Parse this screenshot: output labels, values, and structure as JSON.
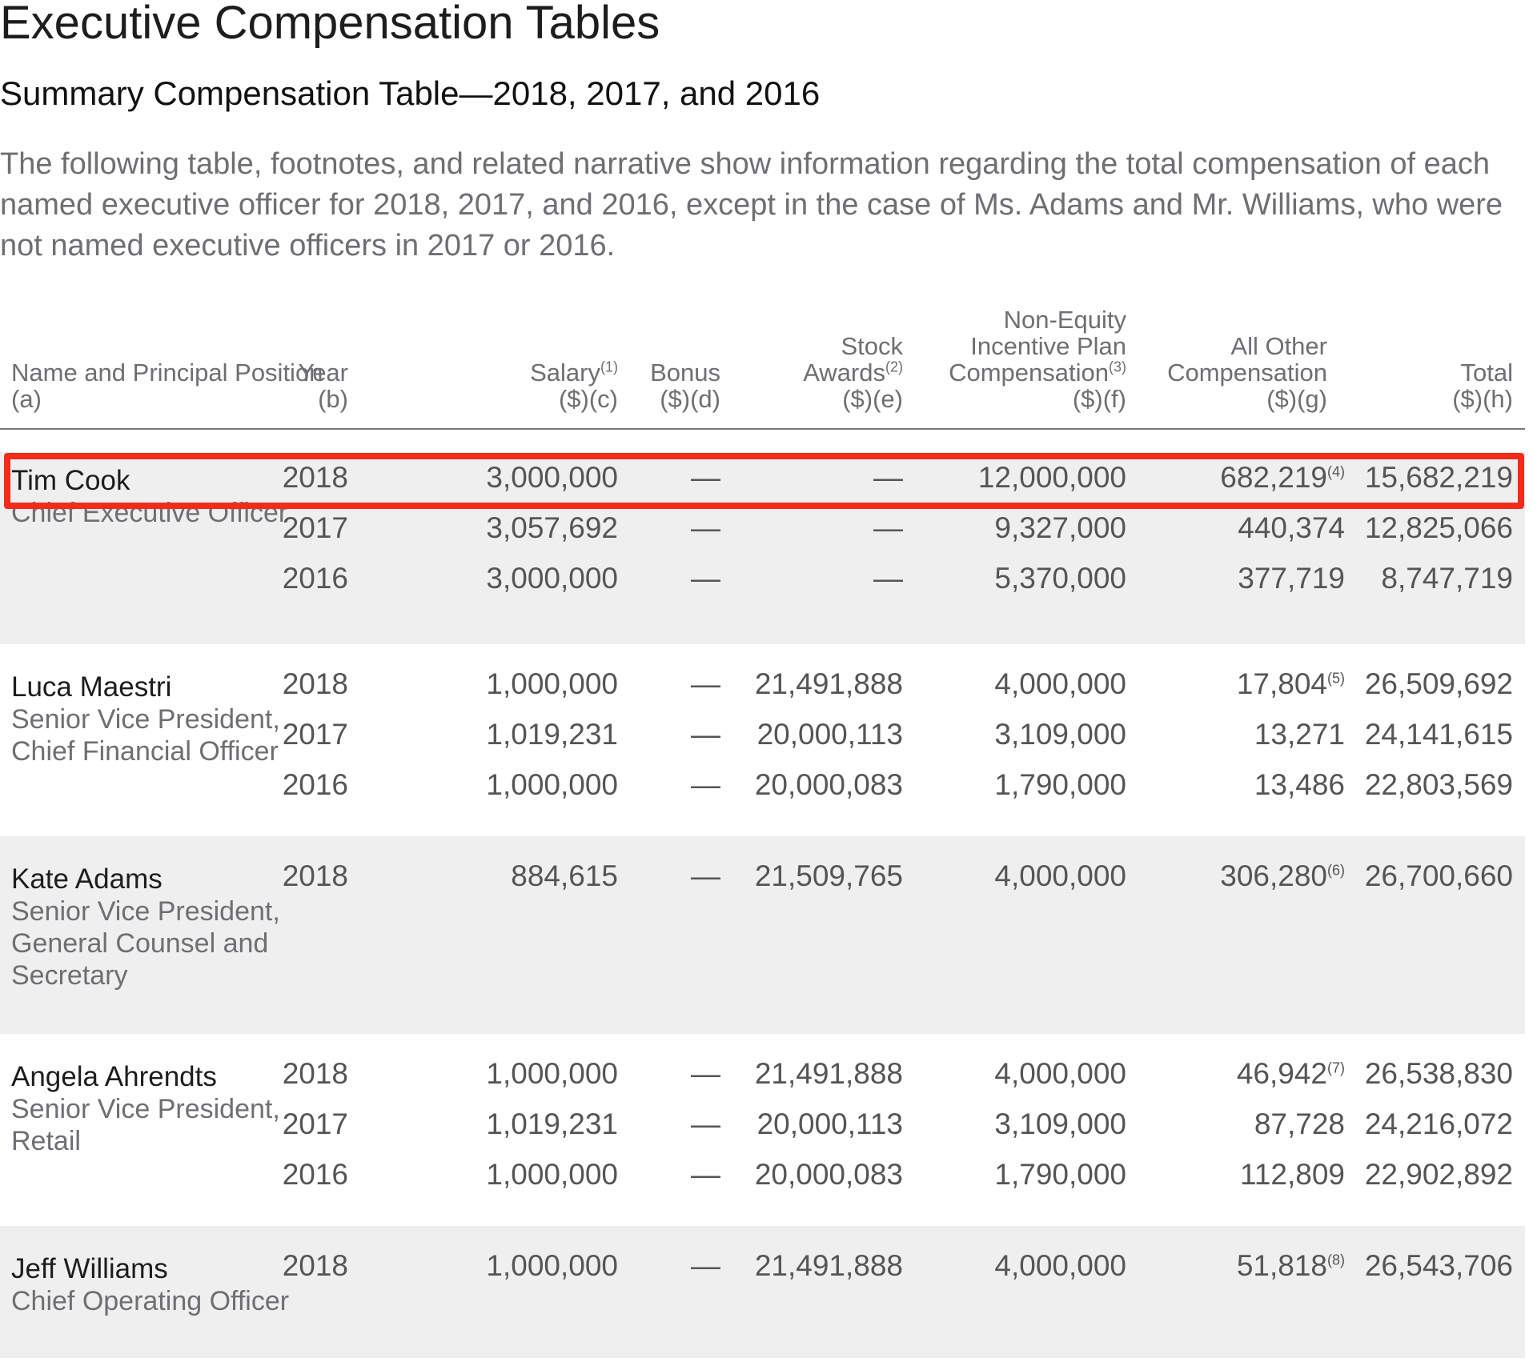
{
  "page_title": "Executive Compensation Tables",
  "table_heading": "Summary Compensation Table—2018, 2017, and 2016",
  "intro": "The following table, footnotes, and related narrative show information regarding the total compensation of each named executive officer for 2018, 2017, and 2016, except in the case of Ms. Adams and Mr. Williams, who were not named executive officers in 2017 or 2016.",
  "columns": {
    "name": {
      "line1": "Name and Principal Position",
      "line2": "(a)"
    },
    "year": {
      "line1": "Year",
      "line2": "(b)"
    },
    "salary": {
      "line1": "Salary",
      "sup": "(1)",
      "line2": "($)(c)"
    },
    "bonus": {
      "line1": "Bonus",
      "line2": "($)(d)"
    },
    "stock": {
      "line1": "Stock",
      "line2": "Awards",
      "sup": "(2)",
      "line3": "($)(e)"
    },
    "neq": {
      "line1": "Non-Equity",
      "line2": "Incentive Plan",
      "line3": "Compensation",
      "sup": "(3)",
      "line4": "($)(f)"
    },
    "other": {
      "line1": "All Other",
      "line2": "Compensation",
      "line3": "($)(g)"
    },
    "total": {
      "line1": "Total",
      "line2": "($)(h)"
    }
  },
  "executives": [
    {
      "name": "Tim Cook",
      "position": [
        "Chief Executive Officer"
      ],
      "rows": [
        {
          "year": "2018",
          "salary": "3,000,000",
          "bonus": "—",
          "stock": "—",
          "neq": "12,000,000",
          "other": "682,219",
          "other_note": "(4)",
          "total": "15,682,219"
        },
        {
          "year": "2017",
          "salary": "3,057,692",
          "bonus": "—",
          "stock": "—",
          "neq": "9,327,000",
          "other": "440,374",
          "other_note": "",
          "total": "12,825,066"
        },
        {
          "year": "2016",
          "salary": "3,000,000",
          "bonus": "—",
          "stock": "—",
          "neq": "5,370,000",
          "other": "377,719",
          "other_note": "",
          "total": "8,747,719"
        }
      ]
    },
    {
      "name": "Luca Maestri",
      "position": [
        "Senior Vice President,",
        "Chief Financial Officer"
      ],
      "rows": [
        {
          "year": "2018",
          "salary": "1,000,000",
          "bonus": "—",
          "stock": "21,491,888",
          "neq": "4,000,000",
          "other": "17,804",
          "other_note": "(5)",
          "total": "26,509,692"
        },
        {
          "year": "2017",
          "salary": "1,019,231",
          "bonus": "—",
          "stock": "20,000,113",
          "neq": "3,109,000",
          "other": "13,271",
          "other_note": "",
          "total": "24,141,615"
        },
        {
          "year": "2016",
          "salary": "1,000,000",
          "bonus": "—",
          "stock": "20,000,083",
          "neq": "1,790,000",
          "other": "13,486",
          "other_note": "",
          "total": "22,803,569"
        }
      ]
    },
    {
      "name": "Kate Adams",
      "position": [
        "Senior Vice President,",
        "General Counsel and",
        "Secretary"
      ],
      "rows": [
        {
          "year": "2018",
          "salary": "884,615",
          "bonus": "—",
          "stock": "21,509,765",
          "neq": "4,000,000",
          "other": "306,280",
          "other_note": "(6)",
          "total": "26,700,660"
        }
      ]
    },
    {
      "name": "Angela Ahrendts",
      "position": [
        "Senior Vice President,",
        "Retail"
      ],
      "rows": [
        {
          "year": "2018",
          "salary": "1,000,000",
          "bonus": "—",
          "stock": "21,491,888",
          "neq": "4,000,000",
          "other": "46,942",
          "other_note": "(7)",
          "total": "26,538,830"
        },
        {
          "year": "2017",
          "salary": "1,019,231",
          "bonus": "—",
          "stock": "20,000,113",
          "neq": "3,109,000",
          "other": "87,728",
          "other_note": "",
          "total": "24,216,072"
        },
        {
          "year": "2016",
          "salary": "1,000,000",
          "bonus": "—",
          "stock": "20,000,083",
          "neq": "1,790,000",
          "other": "112,809",
          "other_note": "",
          "total": "22,902,892"
        }
      ]
    },
    {
      "name": "Jeff Williams",
      "position": [
        "Chief Operating Officer"
      ],
      "rows": [
        {
          "year": "2018",
          "salary": "1,000,000",
          "bonus": "—",
          "stock": "21,491,888",
          "neq": "4,000,000",
          "other": "51,818",
          "other_note": "(8)",
          "total": "26,543,706"
        }
      ]
    }
  ],
  "colors": {
    "highlight": "#f32b1b",
    "shaded_row": "#efefef",
    "muted_text": "#6e6e73"
  }
}
